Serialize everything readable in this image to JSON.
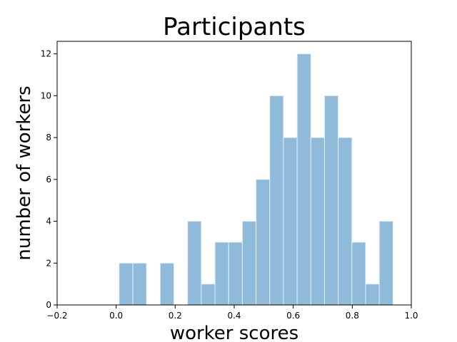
{
  "chart_data": {
    "type": "bar",
    "title": "Participants",
    "xlabel": "worker scores",
    "ylabel": "number of workers",
    "xlim": [
      -0.2,
      1.0
    ],
    "ylim": [
      0,
      12.6
    ],
    "x_ticks": [
      -0.2,
      0.0,
      0.2,
      0.4,
      0.6,
      0.8,
      1.0
    ],
    "x_tick_labels": [
      "−0.2",
      "0.0",
      "0.2",
      "0.4",
      "0.6",
      "0.8",
      "1.0"
    ],
    "y_ticks": [
      0,
      2,
      4,
      6,
      8,
      10,
      12
    ],
    "y_tick_labels": [
      "0",
      "2",
      "4",
      "6",
      "8",
      "10",
      "12"
    ],
    "bin_edges": [
      0.01,
      0.0564,
      0.1028,
      0.1492,
      0.1956,
      0.242,
      0.2884,
      0.3348,
      0.3812,
      0.4276,
      0.474,
      0.5204,
      0.5668,
      0.6132,
      0.6596,
      0.706,
      0.7524,
      0.7988,
      0.8452,
      0.8916,
      0.938
    ],
    "values": [
      2,
      2,
      0,
      2,
      0,
      4,
      1,
      3,
      3,
      4,
      6,
      10,
      8,
      12,
      8,
      10,
      8,
      3,
      1,
      4
    ],
    "bar_color": "#8fbad9",
    "bar_edge_color": "#e6eef5",
    "grid": false,
    "legend": "none"
  }
}
